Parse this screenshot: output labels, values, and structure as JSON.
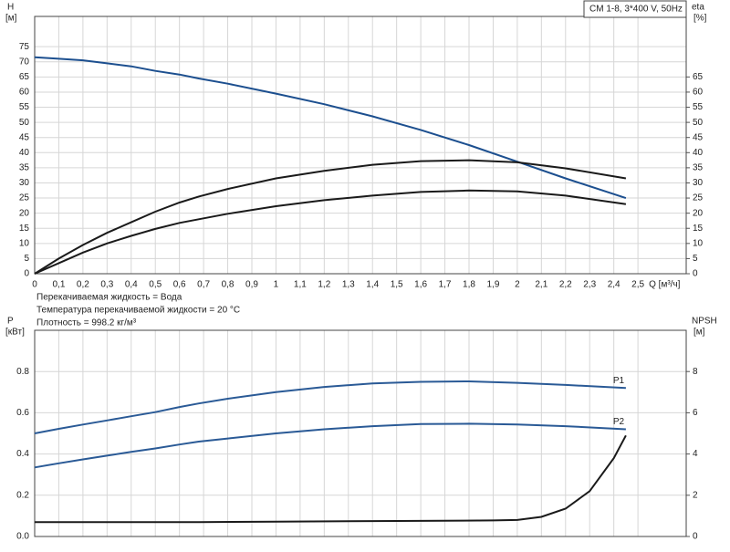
{
  "chart_data": [
    {
      "type": "line",
      "annotation": "CM 1-8, 3*400 V, 50Hz",
      "y_label": "H",
      "y_unit": "[м]",
      "y2_label": "eta",
      "y2_unit": "[%]",
      "x_label": "Q [м³/ч]",
      "notes": [
        "Перекачиваемая жидкость = Вода",
        "Температура перекачиваемой жидкости = 20 °C",
        "Плотность = 998.2 кг/м³"
      ],
      "xlim": [
        0,
        2.7
      ],
      "xticks": [
        0,
        {
          "value": 0.1,
          "label": "0,1"
        },
        {
          "value": 0.2,
          "label": "0,2"
        },
        {
          "value": 0.3,
          "label": "0,3"
        },
        {
          "value": 0.4,
          "label": "0,4"
        },
        {
          "value": 0.5,
          "label": "0,5"
        },
        {
          "value": 0.6,
          "label": "0,6"
        },
        {
          "value": 0.7,
          "label": "0,7"
        },
        {
          "value": 0.8,
          "label": "0,8"
        },
        {
          "value": 0.9,
          "label": "0,9"
        },
        1,
        {
          "value": 1.1,
          "label": "1,1"
        },
        {
          "value": 1.2,
          "label": "1,2"
        },
        {
          "value": 1.3,
          "label": "1,3"
        },
        {
          "value": 1.4,
          "label": "1,4"
        },
        {
          "value": 1.5,
          "label": "1,5"
        },
        {
          "value": 1.6,
          "label": "1,6"
        },
        {
          "value": 1.7,
          "label": "1,7"
        },
        {
          "value": 1.8,
          "label": "1,8"
        },
        {
          "value": 1.9,
          "label": "1,9"
        },
        2,
        {
          "value": 2.1,
          "label": "2,1"
        },
        {
          "value": 2.2,
          "label": "2,2"
        },
        {
          "value": 2.3,
          "label": "2,3"
        },
        {
          "value": 2.4,
          "label": "2,4"
        },
        {
          "value": 2.5,
          "label": "2,5"
        }
      ],
      "show_xtick_labels": true,
      "ylim": [
        0,
        85
      ],
      "yticks": [
        0,
        5,
        10,
        15,
        20,
        25,
        30,
        35,
        40,
        45,
        50,
        55,
        60,
        65,
        70,
        75
      ],
      "y2lim": [
        0,
        85
      ],
      "y2ticks": [
        0,
        5,
        10,
        15,
        20,
        25,
        30,
        35,
        40,
        45,
        50,
        55,
        60,
        65
      ],
      "grid": true,
      "x": [
        0,
        0.1,
        0.2,
        0.3,
        0.4,
        0.5,
        0.6,
        0.68,
        0.8,
        1.0,
        1.2,
        1.4,
        1.6,
        1.8,
        2.0,
        2.2,
        2.45
      ],
      "series": [
        {
          "color": "#1c4f8f",
          "values": [
            71.5,
            71,
            70.5,
            69.5,
            68.5,
            67,
            65.8,
            64.5,
            62.8,
            59.5,
            56,
            52,
            47.5,
            42.5,
            37,
            31.5,
            25
          ]
        },
        {
          "color": "#1a1a1a",
          "axis": "y2",
          "values": [
            0,
            5,
            9.5,
            13.5,
            17,
            20.5,
            23.5,
            25.5,
            28,
            31.5,
            34,
            36,
            37.2,
            37.5,
            36.8,
            34.8,
            31.5
          ]
        },
        {
          "color": "#1a1a1a",
          "axis": "y2",
          "values": [
            0,
            3.5,
            7,
            10,
            12.5,
            14.8,
            16.8,
            18,
            19.8,
            22.3,
            24.3,
            25.8,
            27,
            27.5,
            27.2,
            25.8,
            23
          ]
        }
      ]
    },
    {
      "type": "line",
      "y_label": "P",
      "y_unit": "[кВт]",
      "y2_label": "NPSH",
      "y2_unit": "[м]",
      "xlim": [
        0,
        2.7
      ],
      "xticks": [
        0,
        0.1,
        0.2,
        0.3,
        0.4,
        0.5,
        0.6,
        0.7,
        0.8,
        0.9,
        1,
        1.1,
        1.2,
        1.3,
        1.4,
        1.5,
        1.6,
        1.7,
        1.8,
        1.9,
        2,
        2.1,
        2.2,
        2.3,
        2.4,
        2.5
      ],
      "show_xtick_labels": false,
      "ylim": [
        0,
        1.0
      ],
      "yticks": [
        {
          "value": 0,
          "label": "0.0"
        },
        0.2,
        0.4,
        0.6,
        0.8
      ],
      "y2lim": [
        0,
        10
      ],
      "y2ticks": [
        0,
        2,
        4,
        6,
        8
      ],
      "grid": true,
      "x": [
        0,
        0.1,
        0.2,
        0.3,
        0.4,
        0.5,
        0.6,
        0.68,
        0.8,
        1.0,
        1.2,
        1.4,
        1.6,
        1.8,
        2.0,
        2.2,
        2.45
      ],
      "series": [
        {
          "name": "P1",
          "color": "#2a5a96",
          "values": [
            0.5,
            0.522,
            0.543,
            0.563,
            0.583,
            0.603,
            0.628,
            0.645,
            0.668,
            0.7,
            0.725,
            0.742,
            0.75,
            0.752,
            0.745,
            0.735,
            0.72
          ]
        },
        {
          "name": "P2",
          "color": "#2a5a96",
          "values": [
            0.335,
            0.355,
            0.374,
            0.392,
            0.41,
            0.427,
            0.446,
            0.46,
            0.475,
            0.5,
            0.52,
            0.535,
            0.545,
            0.547,
            0.543,
            0.535,
            0.52
          ]
        },
        {
          "color": "#1a1a1a",
          "axis": "y2",
          "x": [
            0,
            0.68,
            1.0,
            1.5,
            1.9,
            2.0,
            2.1,
            2.2,
            2.3,
            2.4,
            2.45
          ],
          "values": [
            0.7,
            0.7,
            0.72,
            0.75,
            0.78,
            0.8,
            0.95,
            1.35,
            2.2,
            3.8,
            4.9
          ]
        }
      ]
    }
  ]
}
